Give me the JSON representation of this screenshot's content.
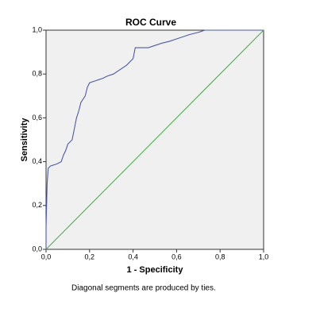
{
  "chart_data": {
    "type": "line",
    "title": "ROC Curve",
    "x_label": "1 - Specificity",
    "y_label": "Sensitivity",
    "footnote": "Diagonal segments are produced by ties.",
    "xlim": [
      0,
      1
    ],
    "ylim": [
      0,
      1
    ],
    "xticks": [
      {
        "value": 0,
        "label": "0,0"
      },
      {
        "value": 0.2,
        "label": "0,2"
      },
      {
        "value": 0.4,
        "label": "0,4"
      },
      {
        "value": 0.6,
        "label": "0,6"
      },
      {
        "value": 0.8,
        "label": "0,8"
      },
      {
        "value": 1,
        "label": "1,0"
      }
    ],
    "yticks": [
      {
        "value": 0,
        "label": "0,0"
      },
      {
        "value": 0.2,
        "label": "0,2"
      },
      {
        "value": 0.4,
        "label": "0,4"
      },
      {
        "value": 0.6,
        "label": "0,6"
      },
      {
        "value": 0.8,
        "label": "0,8"
      },
      {
        "value": 1,
        "label": "1,0"
      }
    ],
    "series": [
      {
        "color": "#4d5aa6",
        "x": [
          0,
          0,
          0.005,
          0.01,
          0.02,
          0.05,
          0.07,
          0.08,
          0.09,
          0.1,
          0.12,
          0.13,
          0.14,
          0.15,
          0.16,
          0.18,
          0.19,
          0.2,
          0.23,
          0.26,
          0.28,
          0.31,
          0.34,
          0.37,
          0.39,
          0.4,
          0.41,
          0.47,
          0.5,
          0.53,
          0.57,
          0.6,
          0.63,
          0.66,
          0.7,
          0.73,
          1
        ],
        "values": [
          0,
          0.1,
          0.3,
          0.37,
          0.38,
          0.39,
          0.4,
          0.43,
          0.45,
          0.48,
          0.5,
          0.55,
          0.6,
          0.63,
          0.67,
          0.7,
          0.74,
          0.76,
          0.77,
          0.78,
          0.79,
          0.8,
          0.82,
          0.84,
          0.86,
          0.87,
          0.92,
          0.92,
          0.93,
          0.94,
          0.95,
          0.96,
          0.97,
          0.98,
          0.99,
          1,
          1
        ]
      },
      {
        "color": "#4cb04c",
        "x": [
          0,
          1
        ],
        "values": [
          0,
          1
        ]
      }
    ]
  }
}
